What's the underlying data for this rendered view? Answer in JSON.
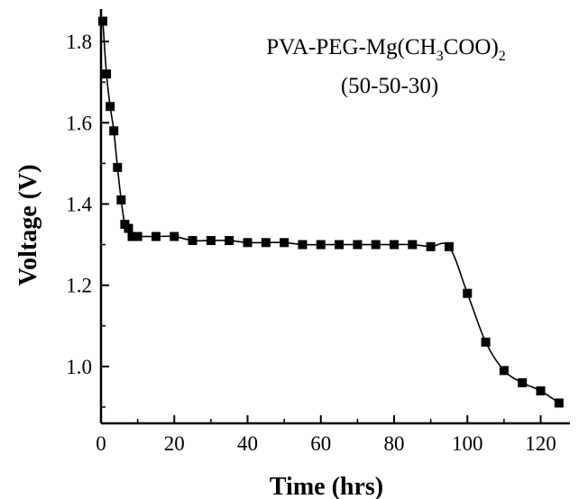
{
  "chart_data": {
    "type": "line",
    "title": "",
    "xlabel": "Time (hrs)",
    "ylabel": "Voltage (V)",
    "xlim": [
      0,
      128
    ],
    "ylim": [
      0.86,
      1.88
    ],
    "x_ticks": [
      0,
      20,
      40,
      60,
      80,
      100,
      120
    ],
    "x_tick_labels": [
      "0",
      "20",
      "40",
      "60",
      "80",
      "100",
      "120"
    ],
    "y_ticks": [
      1.0,
      1.2,
      1.4,
      1.6,
      1.8
    ],
    "y_tick_labels": [
      "1.0",
      "1.2",
      "1.4",
      "1.6",
      "1.8"
    ],
    "annotation": {
      "line1_parts": [
        "PVA-PEG-Mg(CH",
        "3",
        "COO)",
        "2"
      ],
      "line2": "(50-50-30)"
    },
    "marker": "square",
    "color": "#000000",
    "series": [
      {
        "x": [
          0.5,
          1.5,
          2.5,
          3.5,
          4.5,
          5.5,
          6.5,
          7.5,
          8.5,
          10,
          15,
          20,
          25,
          30,
          35,
          40,
          45,
          50,
          55,
          60,
          65,
          70,
          75,
          80,
          85,
          90,
          95,
          100,
          105,
          110,
          115,
          120,
          125
        ],
        "y": [
          1.85,
          1.72,
          1.64,
          1.58,
          1.49,
          1.41,
          1.35,
          1.34,
          1.32,
          1.32,
          1.32,
          1.32,
          1.31,
          1.31,
          1.31,
          1.305,
          1.305,
          1.305,
          1.3,
          1.3,
          1.3,
          1.3,
          1.3,
          1.3,
          1.3,
          1.295,
          1.295,
          1.18,
          1.06,
          0.99,
          0.96,
          0.94,
          0.91
        ]
      }
    ]
  }
}
